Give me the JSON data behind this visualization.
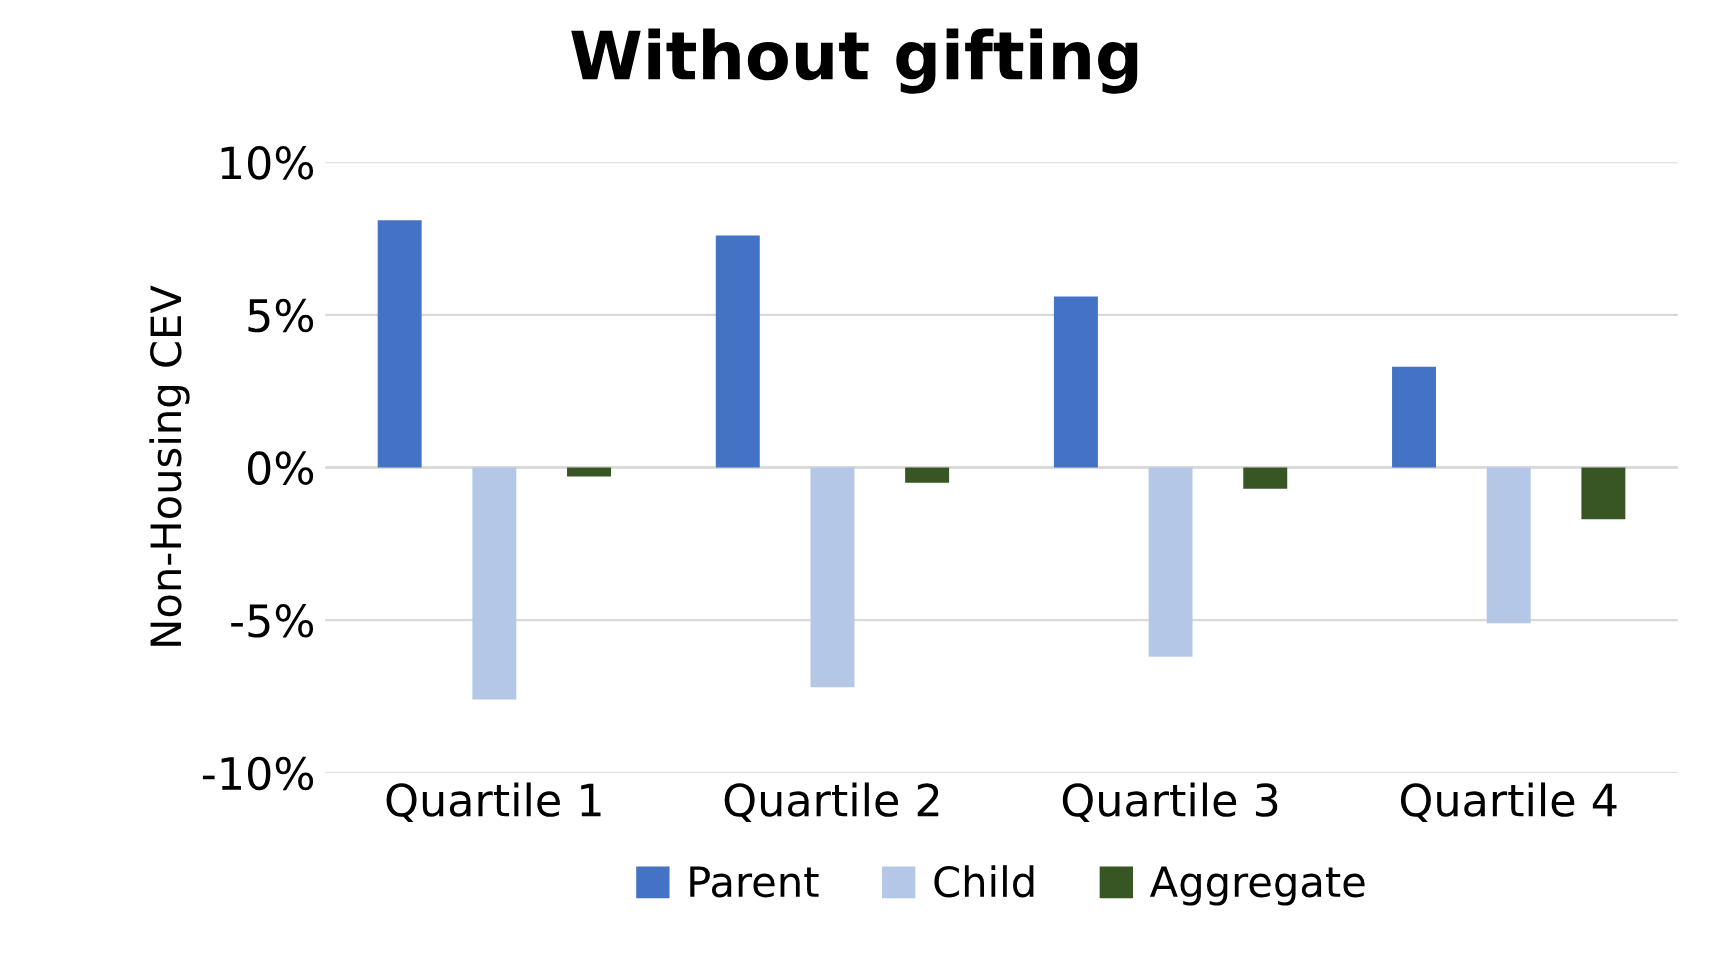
{
  "chart_data": {
    "type": "bar",
    "title": "Without gifting",
    "ylabel": "Non-Housing CEV",
    "categories": [
      "Quartile 1",
      "Quartile 2",
      "Quartile 3",
      "Quartile 4"
    ],
    "series": [
      {
        "name": "Parent",
        "color": "#4472c4",
        "values": [
          8.1,
          7.6,
          5.6,
          3.3
        ]
      },
      {
        "name": "Child",
        "color": "#b4c7e7",
        "values": [
          -7.6,
          -7.2,
          -6.2,
          -5.1
        ]
      },
      {
        "name": "Aggregate",
        "color": "#375623",
        "values": [
          -0.3,
          -0.5,
          -0.7,
          -1.7
        ]
      }
    ],
    "ylim": [
      -10,
      10
    ],
    "yticks": [
      {
        "value": -10,
        "label": "-10%"
      },
      {
        "value": -5,
        "label": "-5%"
      },
      {
        "value": 0,
        "label": "0%"
      },
      {
        "value": 5,
        "label": "5%"
      },
      {
        "value": 10,
        "label": "10%"
      }
    ],
    "grid": "y",
    "legend": "bottom"
  }
}
